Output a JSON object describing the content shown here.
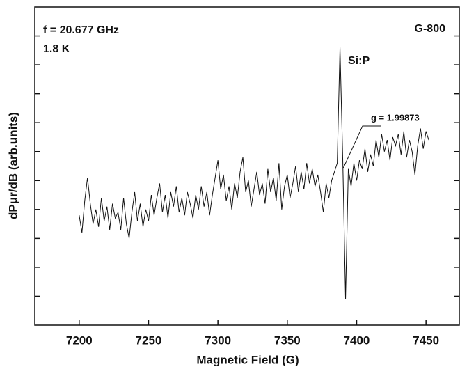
{
  "chart_data": {
    "type": "line",
    "x_label": "Magnetic Field (G)",
    "y_label": "dPμr/dB (arb.units)",
    "annotations": [
      "f = 20.677 GHz",
      "1.8 K",
      "G-800",
      "Si:P",
      "g = 1.99873"
    ],
    "xlim": [
      7168,
      7474
    ],
    "xticks": [
      7200,
      7250,
      7300,
      7350,
      7400,
      7450
    ],
    "ylim": [
      0,
      11
    ],
    "yticks": [
      1,
      2,
      3,
      4,
      5,
      6,
      7,
      8,
      9,
      10
    ],
    "ytick_labels": false,
    "color": "#111111",
    "x": [
      7200,
      7202,
      7204,
      7206,
      7208,
      7210,
      7212,
      7214,
      7216,
      7218,
      7220,
      7222,
      7224,
      7226,
      7228,
      7230,
      7232,
      7234,
      7236,
      7238,
      7240,
      7242,
      7244,
      7246,
      7248,
      7250,
      7252,
      7254,
      7256,
      7258,
      7260,
      7262,
      7264,
      7266,
      7268,
      7270,
      7272,
      7274,
      7276,
      7278,
      7280,
      7282,
      7284,
      7286,
      7288,
      7290,
      7292,
      7294,
      7296,
      7298,
      7300,
      7302,
      7304,
      7306,
      7308,
      7310,
      7312,
      7314,
      7316,
      7318,
      7320,
      7322,
      7324,
      7326,
      7328,
      7330,
      7332,
      7334,
      7336,
      7338,
      7340,
      7342,
      7344,
      7346,
      7348,
      7350,
      7352,
      7354,
      7356,
      7358,
      7360,
      7362,
      7364,
      7366,
      7368,
      7370,
      7372,
      7374,
      7376,
      7378,
      7380,
      7382,
      7384,
      7386,
      7388,
      7390,
      7392,
      7394,
      7396,
      7398,
      7400,
      7402,
      7404,
      7406,
      7408,
      7410,
      7412,
      7414,
      7416,
      7418,
      7420,
      7422,
      7424,
      7426,
      7428,
      7430,
      7432,
      7434,
      7436,
      7438,
      7440,
      7442,
      7444,
      7446,
      7448,
      7450,
      7452
    ],
    "values": [
      3.8,
      3.2,
      4.3,
      5.1,
      4.2,
      3.5,
      4.0,
      3.4,
      4.4,
      3.6,
      4.1,
      3.3,
      4.2,
      3.7,
      3.9,
      3.3,
      4.4,
      3.5,
      3.0,
      3.9,
      4.6,
      3.6,
      4.2,
      3.4,
      4.0,
      3.6,
      4.5,
      3.8,
      4.4,
      4.9,
      3.9,
      4.5,
      3.7,
      4.6,
      4.1,
      4.8,
      3.9,
      4.4,
      3.8,
      4.6,
      4.2,
      3.7,
      4.5,
      4.0,
      4.8,
      4.1,
      4.6,
      3.8,
      4.5,
      5.1,
      5.7,
      4.7,
      5.2,
      4.3,
      4.8,
      4.0,
      4.9,
      4.4,
      5.3,
      5.8,
      4.6,
      5.0,
      4.1,
      4.7,
      5.3,
      4.5,
      4.9,
      4.2,
      5.4,
      4.6,
      5.1,
      4.3,
      5.6,
      4.0,
      4.8,
      5.2,
      4.4,
      4.9,
      5.5,
      4.6,
      5.3,
      4.7,
      5.6,
      4.9,
      5.4,
      4.8,
      5.2,
      4.6,
      3.9,
      4.9,
      4.4,
      5.0,
      5.3,
      5.6,
      9.6,
      5.7,
      0.9,
      5.4,
      4.8,
      5.6,
      5.0,
      5.7,
      5.4,
      6.1,
      5.3,
      5.9,
      5.5,
      6.4,
      5.8,
      6.6,
      6.0,
      6.4,
      5.7,
      6.5,
      6.2,
      6.6,
      5.9,
      6.7,
      5.8,
      6.4,
      6.0,
      5.2,
      6.2,
      6.8,
      6.1,
      6.7,
      6.4
    ]
  }
}
